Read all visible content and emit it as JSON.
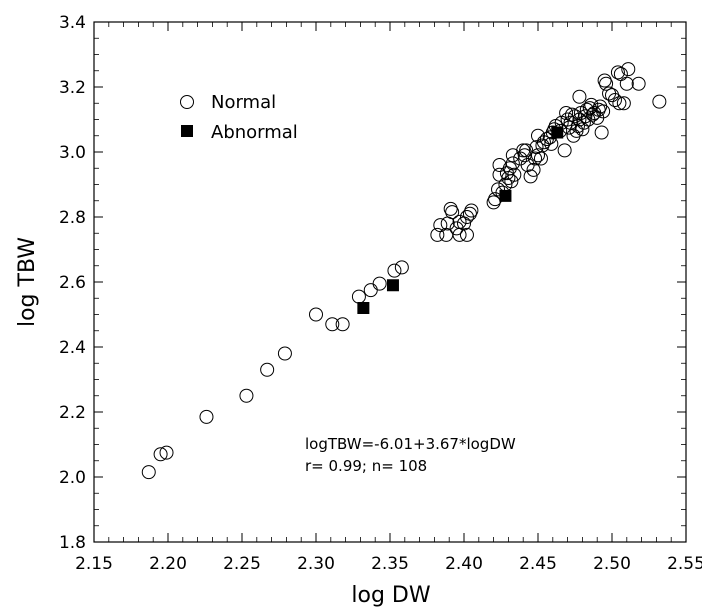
{
  "chart_data": {
    "type": "scatter",
    "xlabel": "log DW",
    "ylabel": "log TBW",
    "xlim": [
      2.15,
      2.55
    ],
    "ylim": [
      1.8,
      3.4
    ],
    "x_ticks": [
      "2.15",
      "2.20",
      "2.25",
      "2.30",
      "2.35",
      "2.40",
      "2.45",
      "2.50",
      "2.55"
    ],
    "y_ticks": [
      "1.8",
      "2.0",
      "2.2",
      "2.4",
      "2.6",
      "2.8",
      "3.0",
      "3.2",
      "3.4"
    ],
    "grid": false,
    "legend_position": "top-left",
    "annotations": [
      "logTBW=-6.01+3.67*logDW",
      "r= 0.99; n= 108"
    ],
    "series": [
      {
        "name": "Normal",
        "marker": "open-circle",
        "points": [
          [
            2.187,
            2.015
          ],
          [
            2.195,
            2.07
          ],
          [
            2.199,
            2.075
          ],
          [
            2.226,
            2.185
          ],
          [
            2.253,
            2.25
          ],
          [
            2.267,
            2.33
          ],
          [
            2.279,
            2.38
          ],
          [
            2.3,
            2.5
          ],
          [
            2.311,
            2.47
          ],
          [
            2.318,
            2.47
          ],
          [
            2.329,
            2.555
          ],
          [
            2.337,
            2.575
          ],
          [
            2.343,
            2.595
          ],
          [
            2.353,
            2.635
          ],
          [
            2.358,
            2.645
          ],
          [
            2.382,
            2.745
          ],
          [
            2.384,
            2.775
          ],
          [
            2.388,
            2.745
          ],
          [
            2.389,
            2.78
          ],
          [
            2.391,
            2.825
          ],
          [
            2.392,
            2.815
          ],
          [
            2.395,
            2.765
          ],
          [
            2.397,
            2.745
          ],
          [
            2.397,
            2.785
          ],
          [
            2.4,
            2.78
          ],
          [
            2.402,
            2.745
          ],
          [
            2.402,
            2.8
          ],
          [
            2.404,
            2.81
          ],
          [
            2.405,
            2.82
          ],
          [
            2.42,
            2.845
          ],
          [
            2.421,
            2.855
          ],
          [
            2.423,
            2.885
          ],
          [
            2.424,
            2.93
          ],
          [
            2.424,
            2.96
          ],
          [
            2.426,
            2.875
          ],
          [
            2.428,
            2.9
          ],
          [
            2.429,
            2.935
          ],
          [
            2.43,
            2.92
          ],
          [
            2.431,
            2.95
          ],
          [
            2.432,
            2.91
          ],
          [
            2.433,
            2.965
          ],
          [
            2.433,
            2.99
          ],
          [
            2.434,
            2.93
          ],
          [
            2.438,
            2.98
          ],
          [
            2.44,
            3.005
          ],
          [
            2.441,
            2.99
          ],
          [
            2.442,
            3.005
          ],
          [
            2.443,
            2.96
          ],
          [
            2.445,
            2.925
          ],
          [
            2.447,
            2.945
          ],
          [
            2.448,
            2.98
          ],
          [
            2.449,
            3.015
          ],
          [
            2.45,
            2.99
          ],
          [
            2.45,
            3.05
          ],
          [
            2.452,
            2.98
          ],
          [
            2.453,
            3.02
          ],
          [
            2.454,
            3.03
          ],
          [
            2.456,
            3.04
          ],
          [
            2.458,
            3.045
          ],
          [
            2.459,
            3.025
          ],
          [
            2.46,
            3.06
          ],
          [
            2.461,
            3.07
          ],
          [
            2.462,
            3.08
          ],
          [
            2.465,
            3.065
          ],
          [
            2.466,
            3.09
          ],
          [
            2.468,
            3.005
          ],
          [
            2.469,
            3.12
          ],
          [
            2.47,
            3.1
          ],
          [
            2.471,
            3.075
          ],
          [
            2.472,
            3.09
          ],
          [
            2.473,
            3.115
          ],
          [
            2.474,
            3.05
          ],
          [
            2.475,
            3.11
          ],
          [
            2.476,
            3.065
          ],
          [
            2.477,
            3.08
          ],
          [
            2.478,
            3.17
          ],
          [
            2.478,
            3.1
          ],
          [
            2.479,
            3.12
          ],
          [
            2.48,
            3.07
          ],
          [
            2.481,
            3.09
          ],
          [
            2.482,
            3.11
          ],
          [
            2.483,
            3.13
          ],
          [
            2.484,
            3.1
          ],
          [
            2.485,
            3.135
          ],
          [
            2.486,
            3.145
          ],
          [
            2.487,
            3.115
          ],
          [
            2.488,
            3.12
          ],
          [
            2.49,
            3.105
          ],
          [
            2.491,
            3.13
          ],
          [
            2.492,
            3.14
          ],
          [
            2.493,
            3.06
          ],
          [
            2.494,
            3.125
          ],
          [
            2.495,
            3.22
          ],
          [
            2.496,
            3.21
          ],
          [
            2.498,
            3.18
          ],
          [
            2.5,
            3.175
          ],
          [
            2.502,
            3.16
          ],
          [
            2.504,
            3.245
          ],
          [
            2.505,
            3.15
          ],
          [
            2.506,
            3.24
          ],
          [
            2.508,
            3.15
          ],
          [
            2.51,
            3.21
          ],
          [
            2.511,
            3.255
          ],
          [
            2.518,
            3.21
          ],
          [
            2.532,
            3.155
          ]
        ]
      },
      {
        "name": "Abnormal",
        "marker": "filled-square",
        "points": [
          [
            2.332,
            2.52
          ],
          [
            2.352,
            2.59
          ],
          [
            2.428,
            2.865
          ],
          [
            2.463,
            3.06
          ]
        ]
      }
    ]
  }
}
